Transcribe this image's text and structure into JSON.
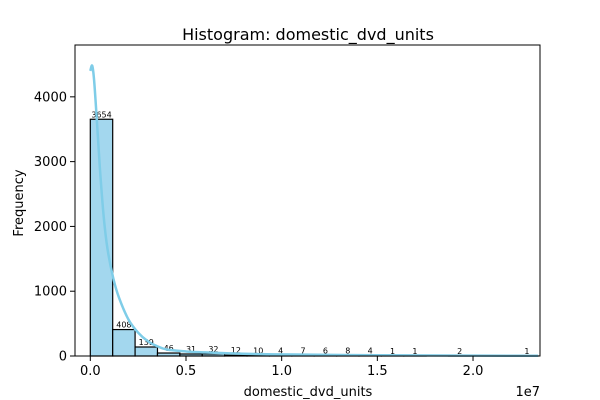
{
  "chart_data": {
    "type": "bar",
    "title": "Histogram: domestic_dvd_units",
    "xlabel": "domestic_dvd_units",
    "ylabel": "Frequency",
    "x_offset_label": "1e7",
    "xlim": [
      -0.08,
      2.35
    ],
    "ylim": [
      0,
      4800
    ],
    "x_ticks": [
      0.0,
      0.5,
      1.0,
      1.5,
      2.0
    ],
    "x_tick_labels": [
      "0.0",
      "0.5",
      "1.0",
      "1.5",
      "2.0"
    ],
    "y_ticks": [
      0,
      1000,
      2000,
      3000,
      4000
    ],
    "y_tick_labels": [
      "0",
      "1000",
      "2000",
      "3000",
      "4000"
    ],
    "bin_edges": [
      0.0,
      0.117,
      0.234,
      0.351,
      0.468,
      0.585,
      0.702,
      0.819,
      0.936,
      1.053,
      1.17,
      1.287,
      1.404,
      1.521,
      1.638,
      1.755,
      1.872,
      1.989,
      2.106,
      2.223,
      2.34
    ],
    "counts": [
      3654,
      408,
      139,
      46,
      31,
      32,
      12,
      10,
      4,
      7,
      6,
      8,
      4,
      1,
      1,
      0,
      2,
      0,
      0,
      1
    ],
    "bar_labels": [
      "3654",
      "408",
      "139",
      "46",
      "31",
      "32",
      "12",
      "10",
      "4",
      "7",
      "6",
      "8",
      "4",
      "1",
      "1",
      "",
      "2",
      "",
      "",
      "1"
    ],
    "kde": {
      "x": [
        0.0,
        0.01,
        0.02,
        0.035,
        0.05,
        0.07,
        0.09,
        0.12,
        0.15,
        0.2,
        0.25,
        0.3,
        0.35,
        0.4,
        0.5,
        0.6,
        0.8,
        1.0,
        1.5,
        2.0,
        2.34
      ],
      "y": [
        4400,
        4480,
        4250,
        3600,
        2900,
        2150,
        1650,
        1200,
        900,
        560,
        360,
        230,
        150,
        100,
        70,
        55,
        35,
        25,
        12,
        6,
        3
      ]
    },
    "grid": false,
    "legend": "none",
    "colors": {
      "bar": "#a3d7ee",
      "kde": "#7fcde8",
      "edge": "#000000"
    }
  }
}
